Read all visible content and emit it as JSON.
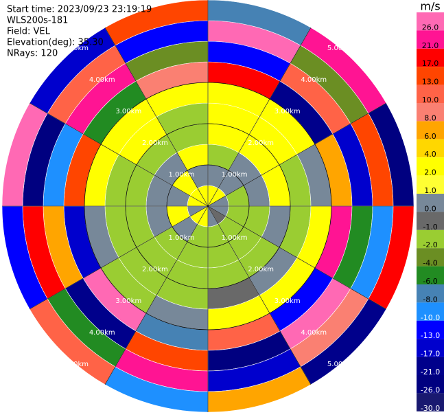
{
  "chart_data": {
    "type": "ppi",
    "header": [
      "Start time: 2023/09/23 23:19:19",
      "WLS200s-181",
      "Field: VEL",
      "Elevation(deg): 35.30",
      "NRays: 120"
    ],
    "ring_labels": [
      "1.00km",
      "2.00km",
      "3.00km",
      "4.00km",
      "5.00km"
    ],
    "colorbar": {
      "label": "m/s",
      "ticks": [
        {
          "value": 26,
          "label": "26.0"
        },
        {
          "value": 21,
          "label": "21.0"
        },
        {
          "value": 17,
          "label": "17.0"
        },
        {
          "value": 13,
          "label": "13.0"
        },
        {
          "value": 10,
          "label": "10.0"
        },
        {
          "value": 8,
          "label": "8.0"
        },
        {
          "value": 6,
          "label": "6.0"
        },
        {
          "value": 4,
          "label": "4.0"
        },
        {
          "value": 2,
          "label": "2.0"
        },
        {
          "value": 1,
          "label": "1.0"
        },
        {
          "value": 0,
          "label": "0.0"
        },
        {
          "value": -1,
          "label": "-1.0"
        },
        {
          "value": -2,
          "label": "-2.0"
        },
        {
          "value": -4,
          "label": "-4.0"
        },
        {
          "value": -6,
          "label": "-6.0"
        },
        {
          "value": -8,
          "label": "-8.0"
        },
        {
          "value": -10,
          "label": "-10.0"
        },
        {
          "value": -13,
          "label": "-13.0"
        },
        {
          "value": -17,
          "label": "-17.0"
        },
        {
          "value": -21,
          "label": "-21.0"
        },
        {
          "value": -26,
          "label": "-26.0"
        },
        {
          "value": -30,
          "label": "-30.0"
        }
      ],
      "colors": [
        "#ff69b4",
        "#ff1493",
        "#ff0000",
        "#ff4500",
        "#ff6347",
        "#fa8072",
        "#ffa500",
        "#ffd700",
        "#ffff00",
        "#ffff33",
        "#778899",
        "#696969",
        "#9acd32",
        "#6b8e23",
        "#228b22",
        "#4682b4",
        "#1e90ff",
        "#0000ff",
        "#0000cd",
        "#00008b",
        "#000080",
        "#191970"
      ]
    },
    "field": [
      [
        2,
        0,
        -2,
        2,
        2,
        2,
        17,
        -13,
        26,
        -8
      ],
      [
        2,
        0,
        0,
        2,
        2,
        2,
        -21,
        10,
        -4,
        21
      ],
      [
        0,
        -2,
        0,
        2,
        -2,
        0,
        6,
        -17,
        13,
        -26
      ],
      [
        0,
        -2,
        -2,
        0,
        -2,
        2,
        21,
        -6,
        -10,
        17
      ],
      [
        -1,
        -2,
        -2,
        -2,
        0,
        2,
        -13,
        26,
        8,
        -21
      ],
      [
        0,
        -2,
        -2,
        -2,
        -1,
        2,
        10,
        -26,
        -17,
        6
      ],
      [
        2,
        -2,
        -2,
        -2,
        -2,
        0,
        -8,
        13,
        21,
        -10
      ],
      [
        2,
        0,
        -2,
        -2,
        -2,
        -2,
        26,
        -21,
        -6,
        10
      ],
      [
        0,
        2,
        0,
        -2,
        -2,
        0,
        -17,
        6,
        17,
        -13
      ],
      [
        2,
        0,
        0,
        -2,
        -2,
        2,
        13,
        -10,
        -26,
        26
      ],
      [
        2,
        2,
        0,
        -2,
        2,
        2,
        -6,
        21,
        10,
        -17
      ],
      [
        2,
        0,
        2,
        -2,
        -2,
        2,
        8,
        -4,
        -13,
        13
      ]
    ]
  }
}
